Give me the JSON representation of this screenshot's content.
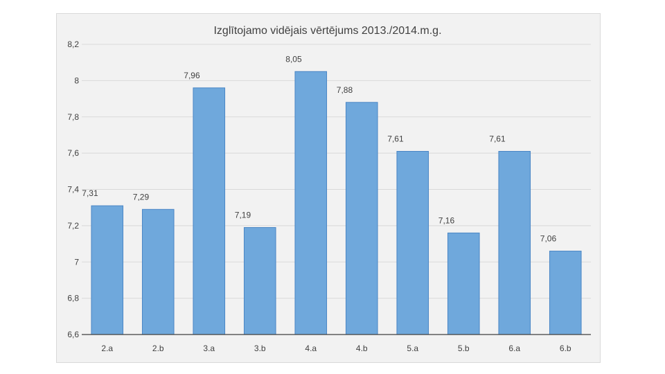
{
  "chart_data": {
    "type": "bar",
    "title": "Izglītojamo vidējais vērtējums 2013./2014.m.g.",
    "categories": [
      "2.a",
      "2.b",
      "3.a",
      "3.b",
      "4.a",
      "4.b",
      "5.a",
      "5.b",
      "6.a",
      "6.b"
    ],
    "values": [
      7.31,
      7.29,
      7.96,
      7.19,
      8.05,
      7.88,
      7.61,
      7.16,
      7.61,
      7.06
    ],
    "data_labels": [
      "7,31",
      "7,29",
      "7,96",
      "7,19",
      "8,05",
      "7,88",
      "7,61",
      "7,16",
      "7,61",
      "7,06"
    ],
    "ylim": [
      6.6,
      8.2
    ],
    "yticks": [
      6.6,
      6.8,
      7.0,
      7.2,
      7.4,
      7.6,
      7.8,
      8.0,
      8.2
    ],
    "ytick_labels": [
      "6,6",
      "6,8",
      "7",
      "7,2",
      "7,4",
      "7,6",
      "7,8",
      "8",
      "8,2"
    ],
    "grid": true,
    "bar_color": "#6fa8dc",
    "bar_border_color": "#4a86c5",
    "grid_color": "#d9d9d9",
    "axis_color": "#404040"
  }
}
